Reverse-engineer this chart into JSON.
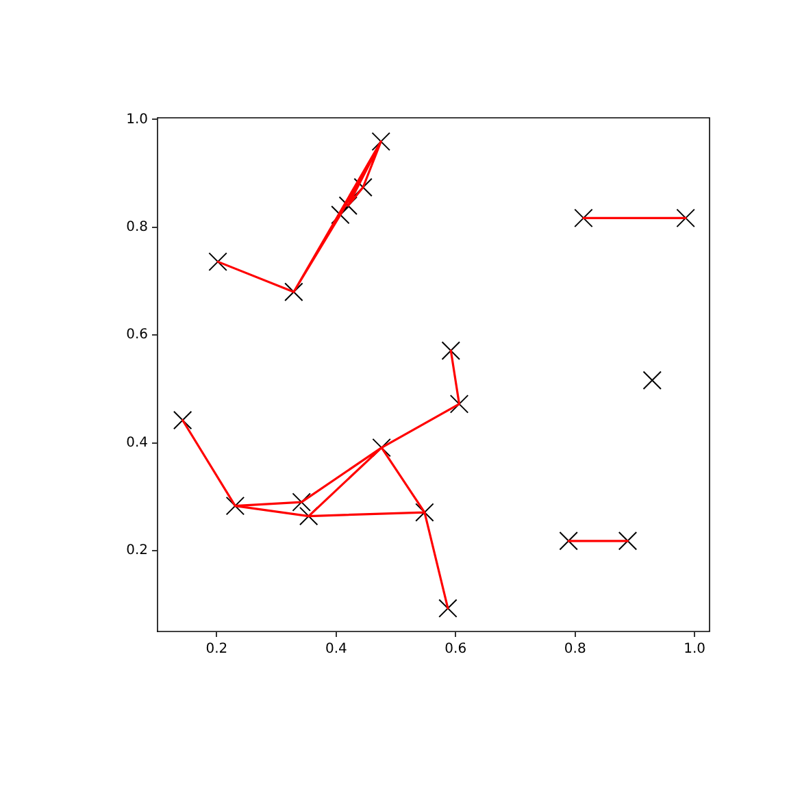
{
  "chart_data": {
    "type": "scatter",
    "xlim": [
      0.101,
      1.025
    ],
    "ylim": [
      0.05,
      1.003
    ],
    "xticks": [
      0.2,
      0.4,
      0.6,
      0.8,
      {
        "value": 1,
        "label": "1.0"
      }
    ],
    "yticks": [
      0.2,
      0.4,
      0.6,
      0.8,
      {
        "value": 1,
        "label": "1.0"
      }
    ],
    "grid": false,
    "legend": false,
    "series": [
      {
        "color": "#000000",
        "marker": "cross",
        "x": [
          0.202,
          0.329,
          0.407,
          0.42,
          0.445,
          0.475,
          0.143,
          0.231,
          0.342,
          0.354,
          0.476,
          0.548,
          0.587,
          0.606,
          0.592,
          0.789,
          0.888,
          0.814,
          0.985,
          0.929
        ],
        "values": [
          0.736,
          0.68,
          0.823,
          0.84,
          0.874,
          0.959,
          0.442,
          0.283,
          0.29,
          0.264,
          0.391,
          0.271,
          0.093,
          0.472,
          0.571,
          0.218,
          0.218,
          0.817,
          0.817,
          0.516
        ]
      },
      {
        "type": "line",
        "color": "#ff0000",
        "marker": "none",
        "line_style": "solid",
        "x": [
          0.202,
          0.329,
          0.475,
          null,
          0.329,
          0.407,
          0.475,
          null,
          0.42,
          0.445,
          0.475,
          null,
          0.42,
          0.475,
          null,
          0.143,
          0.231,
          0.342,
          0.476,
          0.354,
          0.231,
          null,
          0.354,
          0.548,
          0.476,
          0.606,
          0.592,
          null,
          0.548,
          0.587,
          null,
          0.789,
          0.888,
          null,
          0.814,
          0.985
        ],
        "values": [
          0.736,
          0.68,
          0.959,
          null,
          0.68,
          0.823,
          0.959,
          null,
          0.84,
          0.874,
          0.959,
          null,
          0.84,
          0.959,
          null,
          0.442,
          0.283,
          0.29,
          0.391,
          0.264,
          0.283,
          null,
          0.264,
          0.271,
          0.391,
          0.472,
          0.571,
          null,
          0.271,
          0.093,
          null,
          0.218,
          0.218,
          null,
          0.817,
          0.817
        ]
      }
    ]
  }
}
